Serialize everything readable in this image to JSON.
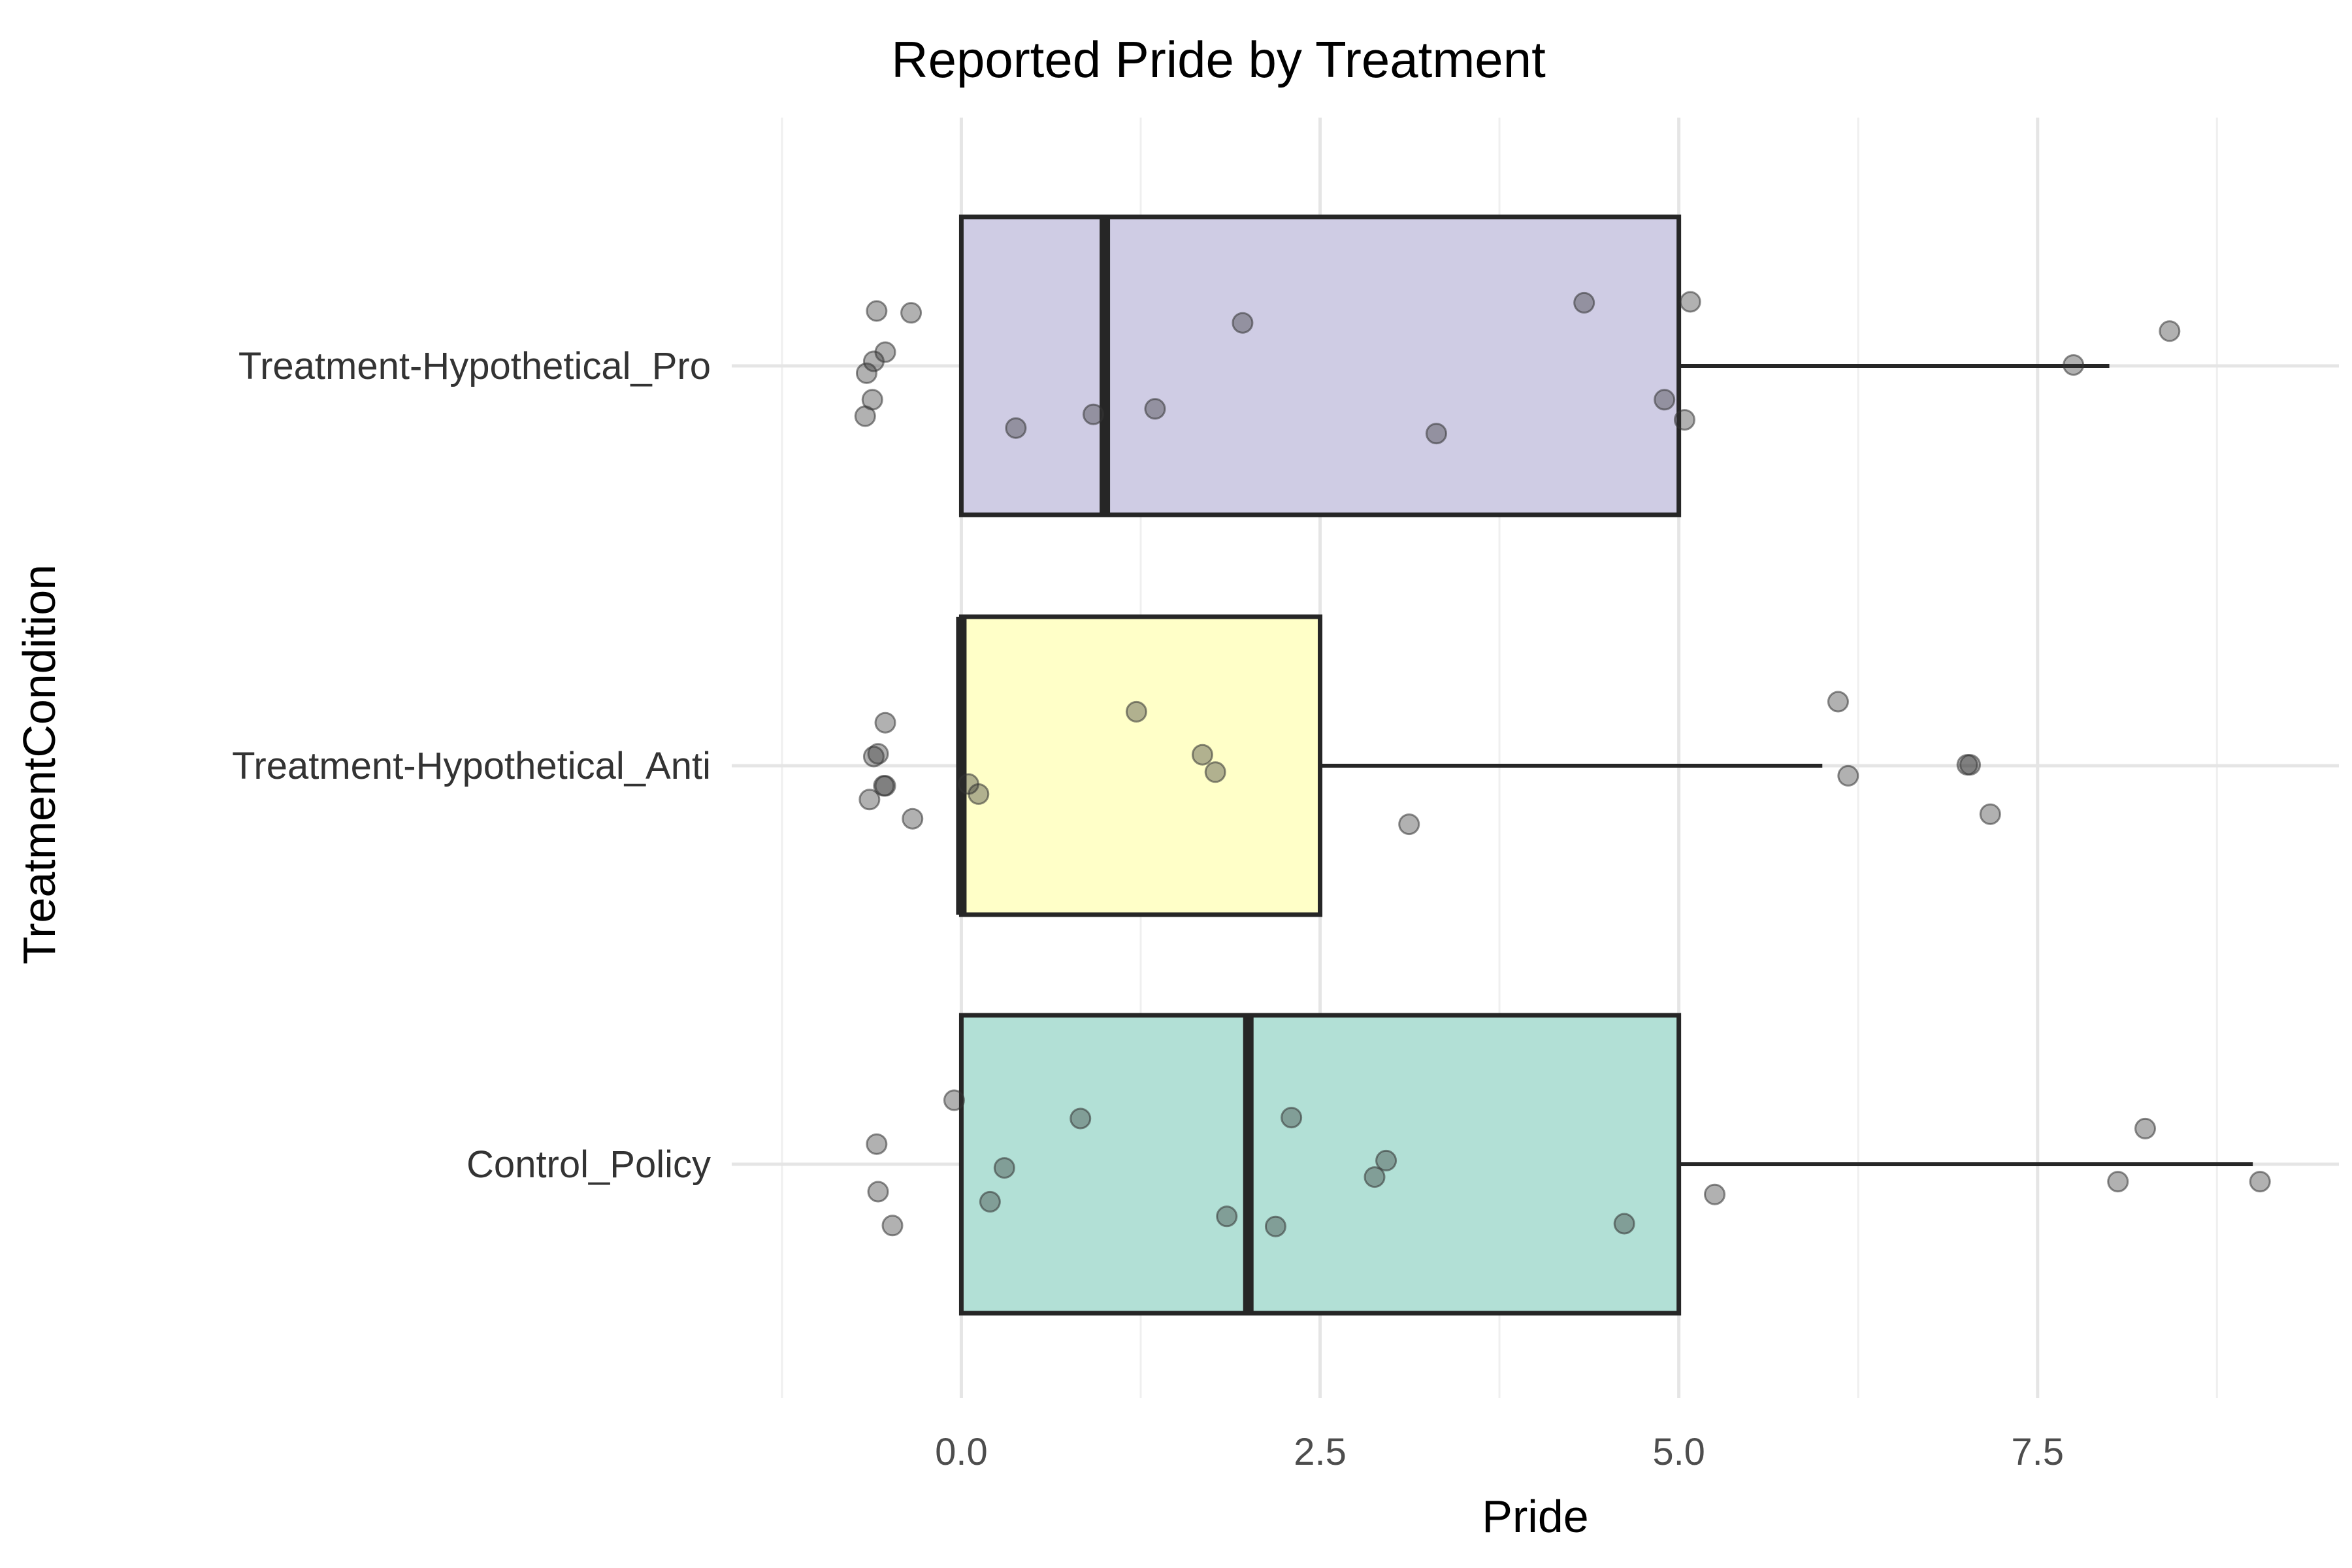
{
  "chart_data": {
    "type": "boxplot",
    "orientation": "horizontal",
    "title": "Reported Pride by Treatment",
    "xlabel": "Pride",
    "ylabel": "TreatmentCondition",
    "xlim": [
      -1.6,
      9.6
    ],
    "x_ticks": [
      0.0,
      2.5,
      5.0,
      7.5
    ],
    "x_tick_labels": [
      "0.0",
      "2.5",
      "5.0",
      "7.5"
    ],
    "grid": true,
    "legend": "none",
    "categories": [
      "Treatment-Hypothetical_Pro",
      "Treatment-Hypothetical_Anti",
      "Control_Policy"
    ],
    "boxes": [
      {
        "category": "Treatment-Hypothetical_Pro",
        "color": "#cfcce4",
        "min": 0,
        "q1": 0,
        "median": 1,
        "q3": 5,
        "whisker_high": 8,
        "points": [
          {
            "x": -0.35,
            "j": 0.58
          },
          {
            "x": -0.53,
            "j": 0.15
          },
          {
            "x": -0.61,
            "j": 0.05
          },
          {
            "x": -0.62,
            "j": -0.37
          },
          {
            "x": -0.67,
            "j": -0.55
          },
          {
            "x": -0.66,
            "j": -0.08
          },
          {
            "x": -0.59,
            "j": 0.6
          },
          {
            "x": 0.38,
            "j": -0.68
          },
          {
            "x": 0.92,
            "j": -0.53
          },
          {
            "x": 1.35,
            "j": -0.47
          },
          {
            "x": 1.96,
            "j": 0.47
          },
          {
            "x": 3.31,
            "j": -0.74
          },
          {
            "x": 4.34,
            "j": 0.69
          },
          {
            "x": 4.9,
            "j": -0.37
          },
          {
            "x": 5.04,
            "j": -0.59
          },
          {
            "x": 5.08,
            "j": 0.7
          },
          {
            "x": 7.75,
            "j": 0.01
          },
          {
            "x": 8.42,
            "j": 0.38
          }
        ]
      },
      {
        "category": "Treatment-Hypothetical_Anti",
        "color": "#ffffc8",
        "min": 0,
        "q1": 0,
        "median": 0,
        "q3": 2.5,
        "whisker_high": 6,
        "points": [
          {
            "x": -0.53,
            "j": 0.47
          },
          {
            "x": -0.58,
            "j": 0.13
          },
          {
            "x": -0.54,
            "j": -0.22
          },
          {
            "x": -0.53,
            "j": -0.22
          },
          {
            "x": -0.64,
            "j": -0.37
          },
          {
            "x": -0.61,
            "j": 0.1
          },
          {
            "x": -0.34,
            "j": -0.58
          },
          {
            "x": 0.05,
            "j": -0.2
          },
          {
            "x": 0.12,
            "j": -0.31
          },
          {
            "x": 1.22,
            "j": 0.59
          },
          {
            "x": 1.68,
            "j": 0.12
          },
          {
            "x": 1.77,
            "j": -0.07
          },
          {
            "x": 3.12,
            "j": -0.64
          },
          {
            "x": 6.11,
            "j": 0.7
          },
          {
            "x": 6.18,
            "j": -0.11
          },
          {
            "x": 7.01,
            "j": 0.01
          },
          {
            "x": 7.03,
            "j": 0.01
          },
          {
            "x": 7.17,
            "j": -0.53
          }
        ]
      },
      {
        "category": "Control_Policy",
        "color": "#b2e0d6",
        "min": 0,
        "q1": 0,
        "median": 2,
        "q3": 5,
        "whisker_high": 9,
        "points": [
          {
            "x": -0.05,
            "j": 0.7
          },
          {
            "x": -0.59,
            "j": 0.22
          },
          {
            "x": -0.58,
            "j": -0.3
          },
          {
            "x": -0.48,
            "j": -0.67
          },
          {
            "x": 0.3,
            "j": -0.04
          },
          {
            "x": 0.2,
            "j": -0.41
          },
          {
            "x": 0.83,
            "j": 0.5
          },
          {
            "x": 1.85,
            "j": -0.57
          },
          {
            "x": 2.19,
            "j": -0.68
          },
          {
            "x": 2.3,
            "j": 0.51
          },
          {
            "x": 2.88,
            "j": -0.14
          },
          {
            "x": 2.96,
            "j": 0.04
          },
          {
            "x": 4.62,
            "j": -0.65
          },
          {
            "x": 5.25,
            "j": -0.33
          },
          {
            "x": 8.06,
            "j": -0.19
          },
          {
            "x": 8.25,
            "j": 0.39
          },
          {
            "x": 9.05,
            "j": -0.19
          }
        ]
      }
    ]
  }
}
